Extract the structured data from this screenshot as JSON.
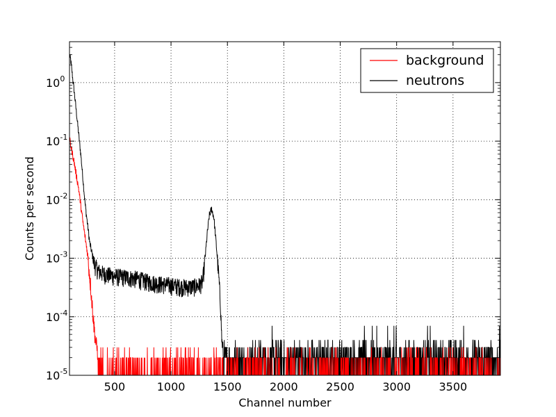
{
  "chart_data": {
    "type": "line",
    "title": "",
    "xlabel": "Channel number",
    "ylabel": "Counts per second",
    "xlim": [
      100,
      3920
    ],
    "ylim": [
      1e-05,
      5
    ],
    "yscale": "log",
    "grid": true,
    "legend_position": "top-right",
    "x_ticks": [
      "500",
      "1000",
      "1500",
      "2000",
      "2500",
      "3000",
      "3500"
    ],
    "y_ticks": [
      {
        "base": "10",
        "exp": "-5"
      },
      {
        "base": "10",
        "exp": "-4"
      },
      {
        "base": "10",
        "exp": "-3"
      },
      {
        "base": "10",
        "exp": "-2"
      },
      {
        "base": "10",
        "exp": "-1"
      },
      {
        "base": "10",
        "exp": "0"
      }
    ],
    "series": [
      {
        "name": "background",
        "color": "#ff0000",
        "x": [
          100,
          140,
          180,
          220,
          260,
          290,
          310,
          330,
          360,
          400,
          600,
          1000,
          1500,
          2000,
          2500,
          3000,
          3500,
          3920
        ],
        "y": [
          0.11,
          0.045,
          0.016,
          0.004,
          0.0012,
          0.0003,
          0.0001,
          4e-05,
          2e-05,
          2e-05,
          2e-05,
          2e-05,
          2e-05,
          2e-05,
          2e-05,
          2e-05,
          2e-05,
          2e-05
        ],
        "floor": 1e-05,
        "noise_max_x": 3920
      },
      {
        "name": "neutrons",
        "color": "#000000",
        "x": [
          100,
          110,
          150,
          200,
          240,
          280,
          320,
          360,
          400,
          500,
          600,
          700,
          800,
          900,
          1000,
          1100,
          1200,
          1250,
          1280,
          1300,
          1320,
          1340,
          1360,
          1380,
          1400,
          1420,
          1440,
          1450,
          1470,
          1500,
          2000,
          2500,
          3000,
          3500,
          3920
        ],
        "y": [
          2.9,
          2.5,
          0.5,
          0.06,
          0.008,
          0.0018,
          0.0008,
          0.0006,
          0.00055,
          0.0005,
          0.00048,
          0.00045,
          0.0004,
          0.00037,
          0.00035,
          0.00033,
          0.00033,
          0.00035,
          0.0004,
          0.0009,
          0.0025,
          0.0055,
          0.007,
          0.005,
          0.0018,
          0.0006,
          0.00015,
          4e-05,
          2e-05,
          2e-05,
          2e-05,
          2e-05,
          2e-05,
          2e-05,
          2e-05
        ],
        "floor": 1e-05
      }
    ]
  }
}
